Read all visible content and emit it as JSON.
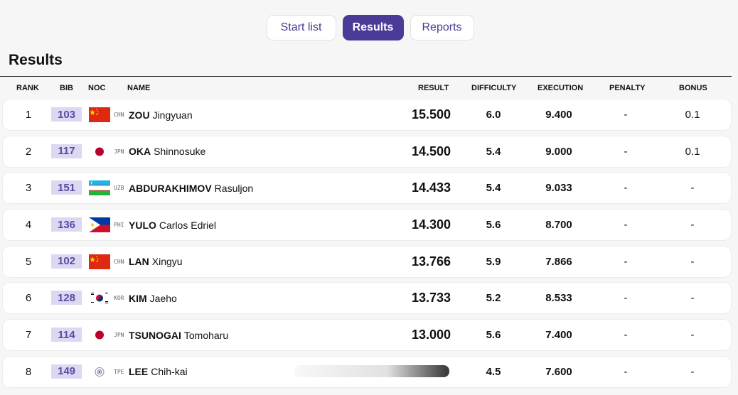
{
  "tabs": [
    {
      "label": "Start list",
      "active": false
    },
    {
      "label": "Results",
      "active": true
    },
    {
      "label": "Reports",
      "active": false
    }
  ],
  "section_title": "Results",
  "columns": {
    "rank": "RANK",
    "bib": "BIB",
    "noc": "NOC",
    "name": "NAME",
    "result": "RESULT",
    "difficulty": "DIFFICULTY",
    "execution": "EXECUTION",
    "penalty": "PENALTY",
    "bonus": "BONUS"
  },
  "rows": [
    {
      "rank": "1",
      "bib": "103",
      "noc": "CHN",
      "flag": "chn-flag-icon",
      "surname": "ZOU",
      "given": "Jingyuan",
      "result": "15.500",
      "difficulty": "6.0",
      "execution": "9.400",
      "penalty": "-",
      "bonus": "0.1"
    },
    {
      "rank": "2",
      "bib": "117",
      "noc": "JPN",
      "flag": "jpn-flag-icon",
      "surname": "OKA",
      "given": "Shinnosuke",
      "result": "14.500",
      "difficulty": "5.4",
      "execution": "9.000",
      "penalty": "-",
      "bonus": "0.1"
    },
    {
      "rank": "3",
      "bib": "151",
      "noc": "UZB",
      "flag": "uzb-flag-icon",
      "surname": "ABDURAKHIMOV",
      "given": "Rasuljon",
      "result": "14.433",
      "difficulty": "5.4",
      "execution": "9.033",
      "penalty": "-",
      "bonus": "-"
    },
    {
      "rank": "4",
      "bib": "136",
      "noc": "PHI",
      "flag": "phi-flag-icon",
      "surname": "YULO",
      "given": "Carlos Edriel",
      "result": "14.300",
      "difficulty": "5.6",
      "execution": "8.700",
      "penalty": "-",
      "bonus": "-"
    },
    {
      "rank": "5",
      "bib": "102",
      "noc": "CHN",
      "flag": "chn-flag-icon",
      "surname": "LAN",
      "given": "Xingyu",
      "result": "13.766",
      "difficulty": "5.9",
      "execution": "7.866",
      "penalty": "-",
      "bonus": "-"
    },
    {
      "rank": "6",
      "bib": "128",
      "noc": "KOR",
      "flag": "kor-flag-icon",
      "surname": "KIM",
      "given": "Jaeho",
      "result": "13.733",
      "difficulty": "5.2",
      "execution": "8.533",
      "penalty": "-",
      "bonus": "-"
    },
    {
      "rank": "7",
      "bib": "114",
      "noc": "JPN",
      "flag": "jpn-flag-icon",
      "surname": "TSUNOGAI",
      "given": "Tomoharu",
      "result": "13.000",
      "difficulty": "5.6",
      "execution": "7.400",
      "penalty": "-",
      "bonus": "-"
    },
    {
      "rank": "8",
      "bib": "149",
      "noc": "TPE",
      "flag": "tpe-flag-icon",
      "surname": "LEE",
      "given": "Chih-kai",
      "result": "",
      "difficulty": "4.5",
      "execution": "7.600",
      "penalty": "-",
      "bonus": "-"
    }
  ],
  "colors": {
    "accent": "#4b3a96",
    "bib_bg": "#dcd8f1",
    "bib_text": "#5a4aa5"
  }
}
